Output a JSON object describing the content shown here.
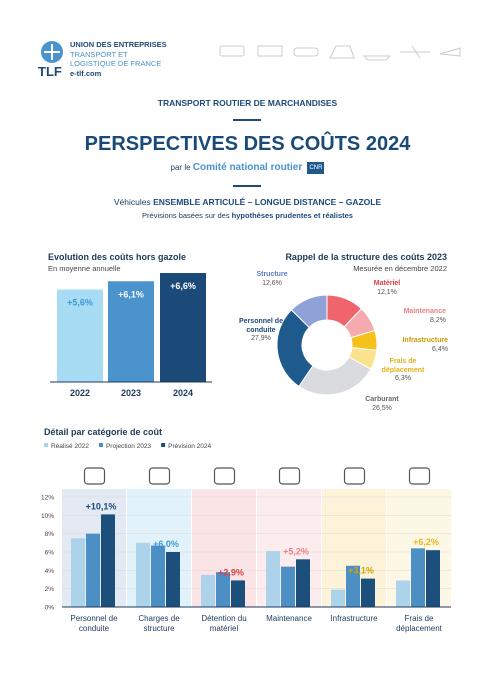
{
  "header": {
    "logo": "TLF",
    "org_lines": [
      "UNION DES ENTREPRISES",
      "TRANSPORT ET",
      "LOGISTIQUE DE FRANCE"
    ],
    "website": "e-tlf.com"
  },
  "kicker": "TRANSPORT ROUTIER DE MARCHANDISES",
  "title": "PERSPECTIVES DES COÛTS 2024",
  "byline": {
    "prefix": "par le",
    "name": "Comité national routier",
    "logo": "CNR"
  },
  "vehicle": {
    "prefix": "Véhicules",
    "name": "ENSEMBLE ARTICULÉ – LONGUE DISTANCE – GAZOLE"
  },
  "note": {
    "prefix": "Prévisions basées sur des",
    "emphasis": "hypothèses prudentes et réalistes"
  },
  "chart_data": [
    {
      "type": "bar",
      "title": "Evolution des coûts hors gazole",
      "subtitle": "En moyenne annuelle",
      "categories": [
        "2022",
        "2023",
        "2024"
      ],
      "values": [
        5.6,
        6.1,
        6.6
      ],
      "value_labels": [
        "+5,6%",
        "+6,1%",
        "+6,6%"
      ],
      "colors": [
        "#a8dcf4",
        "#4a93cc",
        "#1c4a78"
      ],
      "label_colors": [
        "#3a9ad6",
        "#ffffff",
        "#ffffff"
      ]
    },
    {
      "type": "donut",
      "title": "Rappel de la structure des coûts 2023",
      "subtitle": "Mesurée en décembre 2022",
      "categories": [
        "Matériel",
        "Maintenance",
        "Infrastructure",
        "Frais de déplacement",
        "Carburant",
        "Personnel de conduite",
        "Structure"
      ],
      "values": [
        12.1,
        8.2,
        6.4,
        6.3,
        26.5,
        27.9,
        12.6
      ],
      "value_labels": [
        "12,1%",
        "8,2%",
        "6,4%",
        "6,3%",
        "26,5%",
        "27,9%",
        "12,6%"
      ],
      "colors": [
        "#f0656b",
        "#f6a9ae",
        "#f5c21b",
        "#fbe38c",
        "#d9dbdf",
        "#1f5a8c",
        "#8fa2d8"
      ],
      "label_colors": [
        "#e03c44",
        "#ee7f86",
        "#c99a00",
        "#e0b21a",
        "#666a70",
        "#1c4a78",
        "#5a7cc4"
      ]
    },
    {
      "type": "grouped_bar",
      "title": "Détail par catégorie de coût",
      "categories": [
        "Personnel de conduite",
        "Charges de structure",
        "Détention du matériel",
        "Maintenance",
        "Infrastructure",
        "Frais de déplacement"
      ],
      "series": [
        {
          "name": "Réalisé 2022",
          "color": "#acd3ea",
          "values": [
            7.5,
            7.0,
            3.5,
            6.1,
            1.9,
            2.9
          ]
        },
        {
          "name": "Projection 2023",
          "color": "#4b8fc5",
          "values": [
            8.0,
            6.7,
            3.8,
            4.4,
            4.5,
            6.4
          ]
        },
        {
          "name": "Prévision 2024",
          "color": "#1d4f7c",
          "values": [
            10.1,
            6.0,
            2.9,
            5.2,
            3.1,
            6.2
          ],
          "value_labels": [
            "+10,1%",
            "+6,0%",
            "+2,9%",
            "+5,2%",
            "+3,1%",
            "+6,2%"
          ]
        }
      ],
      "ylim": [
        0,
        12
      ],
      "yticks": [
        {
          "value": 0,
          "label": "0%"
        },
        {
          "value": 2,
          "label": "2%"
        },
        {
          "value": 4,
          "label": "4%"
        },
        {
          "value": 6,
          "label": "6%"
        },
        {
          "value": 8,
          "label": "8%"
        },
        {
          "value": 10,
          "label": "10%"
        },
        {
          "value": 12,
          "label": "12%"
        }
      ],
      "panel_colors": [
        "#e4eaf3",
        "#e2f2fa",
        "#fbe4e6",
        "#fdecee",
        "#fdf3d8",
        "#fdf8e6"
      ],
      "label_colors": [
        "#1c4a78",
        "#3a9ad6",
        "#e03c44",
        "#ee7f86",
        "#d4a300",
        "#e8b81c"
      ]
    }
  ]
}
